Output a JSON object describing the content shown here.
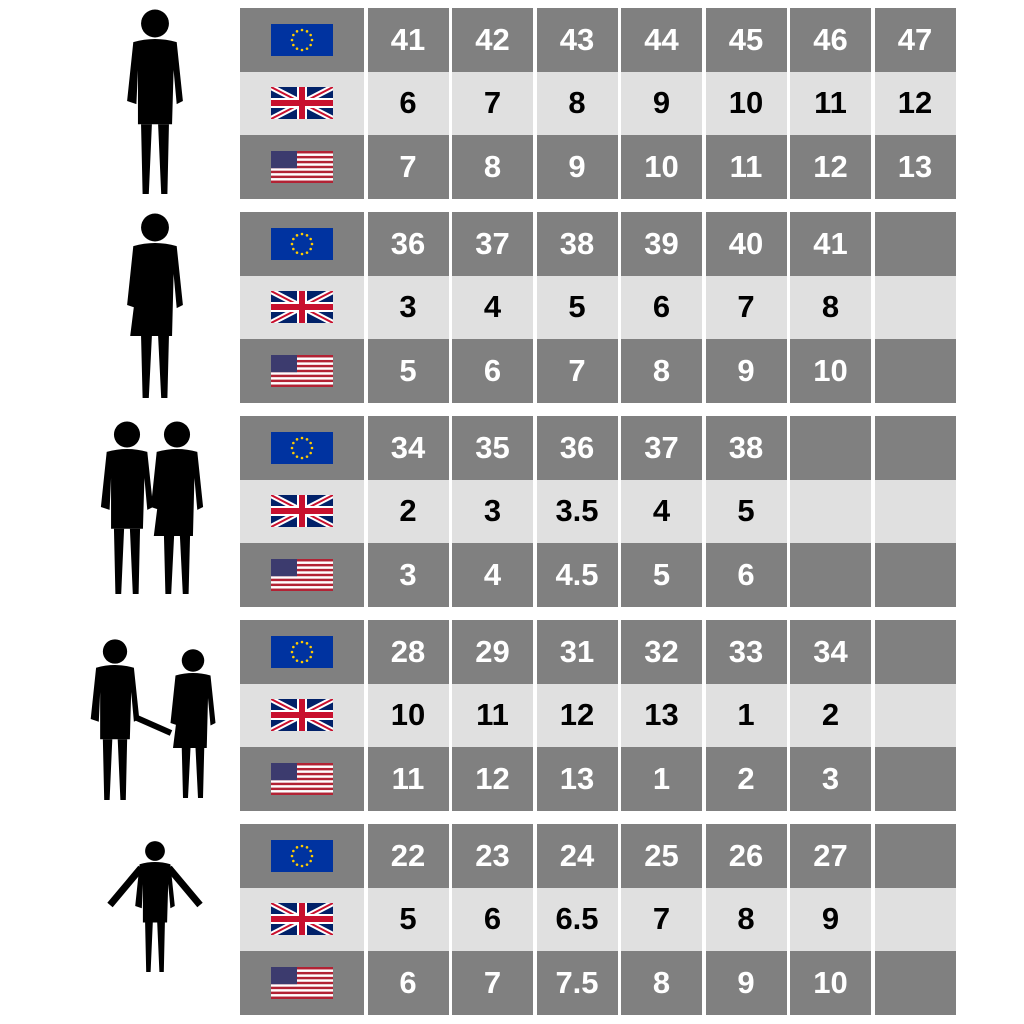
{
  "colors": {
    "dark_row": "#808080",
    "light_row": "#e0e0e0"
  },
  "flags": [
    "eu-flag",
    "uk-flag",
    "us-flag"
  ],
  "groups": [
    {
      "figure": "man-silhouette",
      "rows": {
        "eu": [
          "41",
          "42",
          "43",
          "44",
          "45",
          "46",
          "47"
        ],
        "uk": [
          "6",
          "7",
          "8",
          "9",
          "10",
          "11",
          "12"
        ],
        "us": [
          "7",
          "8",
          "9",
          "10",
          "11",
          "12",
          "13"
        ]
      }
    },
    {
      "figure": "woman-silhouette",
      "rows": {
        "eu": [
          "36",
          "37",
          "38",
          "39",
          "40",
          "41",
          ""
        ],
        "uk": [
          "3",
          "4",
          "5",
          "6",
          "7",
          "8",
          ""
        ],
        "us": [
          "5",
          "6",
          "7",
          "8",
          "9",
          "10",
          ""
        ]
      }
    },
    {
      "figure": "children-silhouette",
      "rows": {
        "eu": [
          "34",
          "35",
          "36",
          "37",
          "38",
          "",
          ""
        ],
        "uk": [
          "2",
          "3",
          "3.5",
          "4",
          "5",
          "",
          ""
        ],
        "us": [
          "3",
          "4",
          "4.5",
          "5",
          "6",
          "",
          ""
        ]
      }
    },
    {
      "figure": "kids-holding-hands-silhouette",
      "rows": {
        "eu": [
          "28",
          "29",
          "31",
          "32",
          "33",
          "34",
          ""
        ],
        "uk": [
          "10",
          "11",
          "12",
          "13",
          "1",
          "2",
          ""
        ],
        "us": [
          "11",
          "12",
          "13",
          "1",
          "2",
          "3",
          ""
        ]
      }
    },
    {
      "figure": "baby-silhouette",
      "rows": {
        "eu": [
          "22",
          "23",
          "24",
          "25",
          "26",
          "27",
          ""
        ],
        "uk": [
          "5",
          "6",
          "6.5",
          "7",
          "8",
          "9",
          ""
        ],
        "us": [
          "6",
          "7",
          "7.5",
          "8",
          "9",
          "10",
          ""
        ]
      }
    }
  ]
}
